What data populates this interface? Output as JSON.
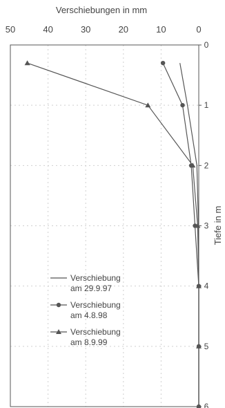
{
  "chart_data": {
    "type": "line",
    "title": "",
    "xlabel": "Verschiebungen in mm",
    "ylabel": "Tiefe in m",
    "x_axis_position": "top",
    "y_axis_position": "right",
    "xlim": [
      50,
      0
    ],
    "ylim": [
      0,
      6
    ],
    "x_reversed": true,
    "y_inverted": true,
    "x_ticks": [
      "50",
      "40",
      "30",
      "20",
      "10",
      "0"
    ],
    "y_ticks": [
      "0",
      "1",
      "2",
      "3",
      "4",
      "5",
      "6"
    ],
    "grid": true,
    "legend_position": "lower-left",
    "series": [
      {
        "name": "Verschiebung am 29.9.97",
        "marker": "none",
        "points": [
          [
            5,
            0.3
          ],
          [
            3,
            1.0
          ],
          [
            0.5,
            2.0
          ],
          [
            0.1,
            3.0
          ],
          [
            0,
            4.0
          ],
          [
            0,
            5.0
          ],
          [
            0,
            6.0
          ]
        ]
      },
      {
        "name": "Verschiebung am 4.8.98",
        "marker": "circle",
        "points": [
          [
            9.5,
            0.3
          ],
          [
            4.3,
            1.0
          ],
          [
            2.0,
            2.0
          ],
          [
            1.0,
            3.0
          ],
          [
            0,
            4.0
          ],
          [
            0,
            5.0
          ],
          [
            0,
            6.0
          ]
        ]
      },
      {
        "name": "Verschiebung am 8.9.99",
        "marker": "triangle",
        "points": [
          [
            45.5,
            0.3
          ],
          [
            13.5,
            1.0
          ],
          [
            1.6,
            2.0
          ],
          [
            0.3,
            3.0
          ],
          [
            0,
            4.0
          ],
          [
            0,
            5.0
          ],
          [
            0,
            6.0
          ]
        ]
      }
    ]
  },
  "legend": [
    {
      "line1": "Verschiebung",
      "line2": "am 29.9.97"
    },
    {
      "line1": "Verschiebung",
      "line2": "am 4.8.98"
    },
    {
      "line1": "Verschiebung",
      "line2": "am 8.9.99"
    }
  ]
}
